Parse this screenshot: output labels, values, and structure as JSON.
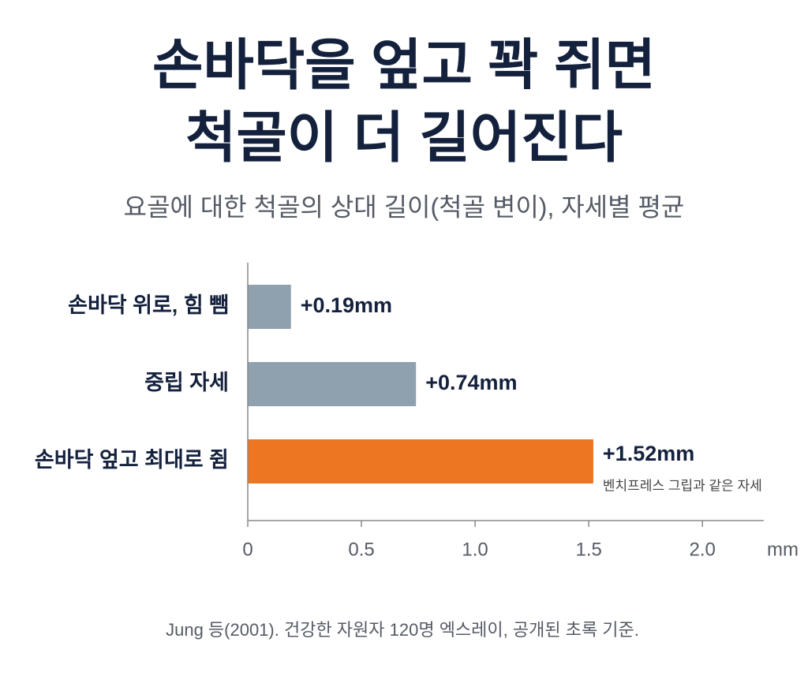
{
  "chart_data": {
    "type": "hbar",
    "title": [
      "손바닥을 엎고 꽉 쥐면",
      "척골이 더 길어진다"
    ],
    "subtitle": "요골에 대한 척골의 상대 길이(척골 변이), 자세별 평균",
    "categories": [
      "손바닥 위로, 힘 뺌",
      "중립 자세",
      "손바닥 엎고 최대로 쥠"
    ],
    "values": [
      0.19,
      0.74,
      1.52
    ],
    "value_labels": [
      "+0.19mm",
      "+0.74mm",
      "+1.52mm"
    ],
    "colors": [
      "#8fa1ae",
      "#8fa1ae",
      "#ec7622"
    ],
    "annotations": [
      {
        "category": 2,
        "text": "벤치프레스 그립과 같은 자세"
      }
    ],
    "xlim": [
      0,
      2.27
    ],
    "xticks": [
      0,
      0.5,
      {
        "value": 1,
        "label": "1.0"
      },
      1.5,
      {
        "value": 2,
        "label": "2.0"
      }
    ],
    "xlabel": "mm",
    "source": "Jung 등(2001). 건강한 자원자 120명 엑스레이, 공개된 초록 기준."
  }
}
